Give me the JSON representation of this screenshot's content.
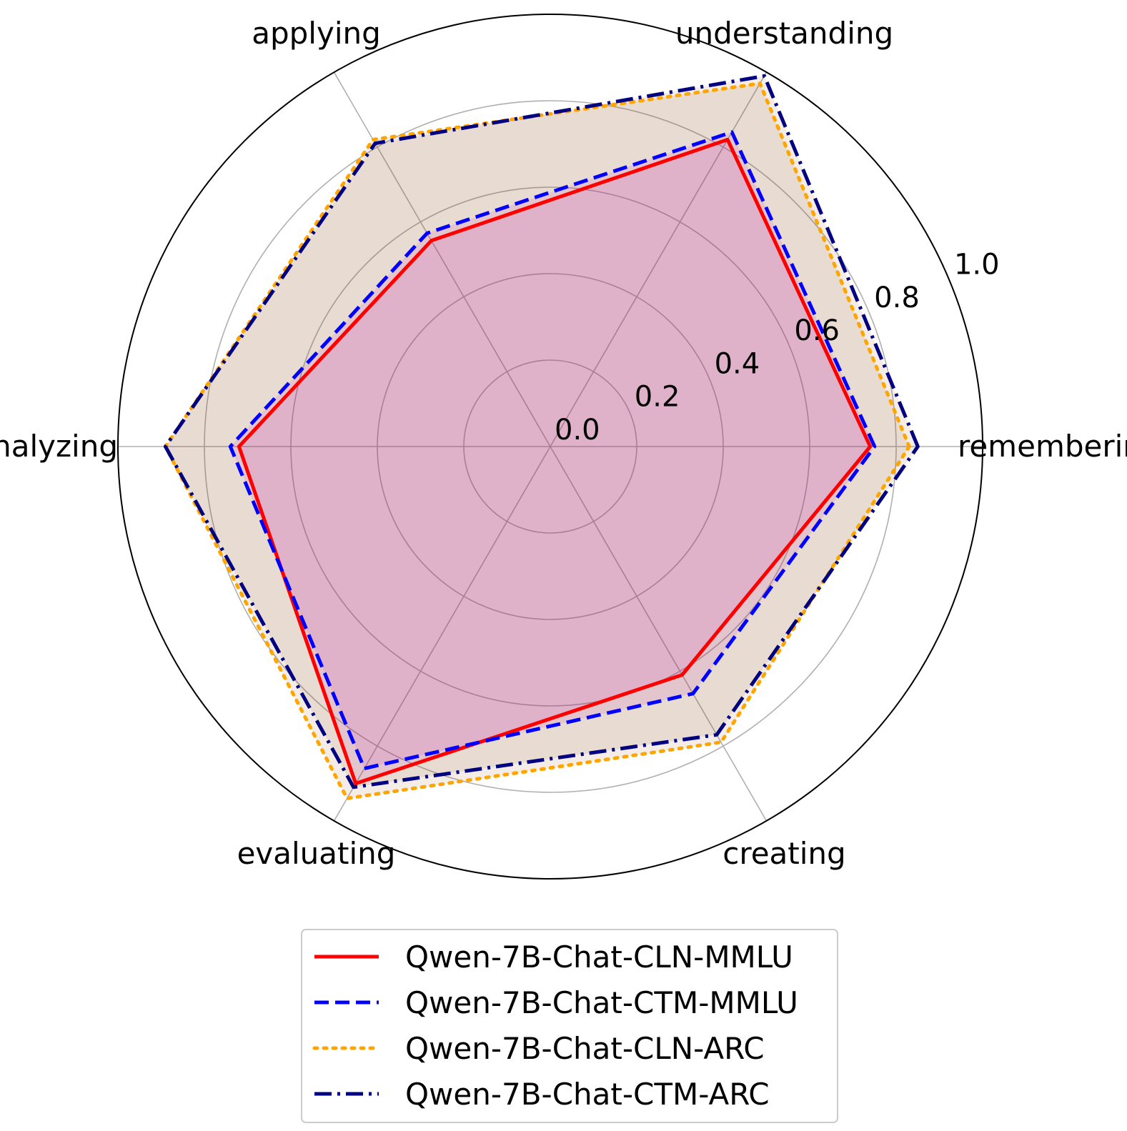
{
  "chart_data": {
    "type": "radar",
    "categories": [
      "remembering",
      "understanding",
      "applying",
      "analyzing",
      "evaluating",
      "creating"
    ],
    "radial_ticks": [
      "0.0",
      "0.2",
      "0.4",
      "0.6",
      "0.8",
      "1.0"
    ],
    "rlim": [
      0,
      1.0
    ],
    "grid": true,
    "legend_position": "bottom-center",
    "series": [
      {
        "name": "Qwen-7B-Chat-CLN-MMLU",
        "values": [
          0.74,
          0.82,
          0.55,
          0.72,
          0.9,
          0.61
        ],
        "color": "#ff0000",
        "line_style": "solid",
        "fill": "#cc00cc"
      },
      {
        "name": "Qwen-7B-Chat-CTM-MMLU",
        "values": [
          0.75,
          0.84,
          0.57,
          0.74,
          0.86,
          0.66
        ],
        "color": "#0000ff",
        "line_style": "dashed",
        "fill": "#cc00cc"
      },
      {
        "name": "Qwen-7B-Chat-CLN-ARC",
        "values": [
          0.83,
          0.97,
          0.82,
          0.89,
          0.94,
          0.79
        ],
        "color": "#ffa500",
        "line_style": "dotted",
        "fill": "#8b4513"
      },
      {
        "name": "Qwen-7B-Chat-CTM-ARC",
        "values": [
          0.85,
          0.99,
          0.81,
          0.89,
          0.91,
          0.77
        ],
        "color": "#000080",
        "line_style": "dashdot",
        "fill": "#8b4513"
      }
    ]
  }
}
